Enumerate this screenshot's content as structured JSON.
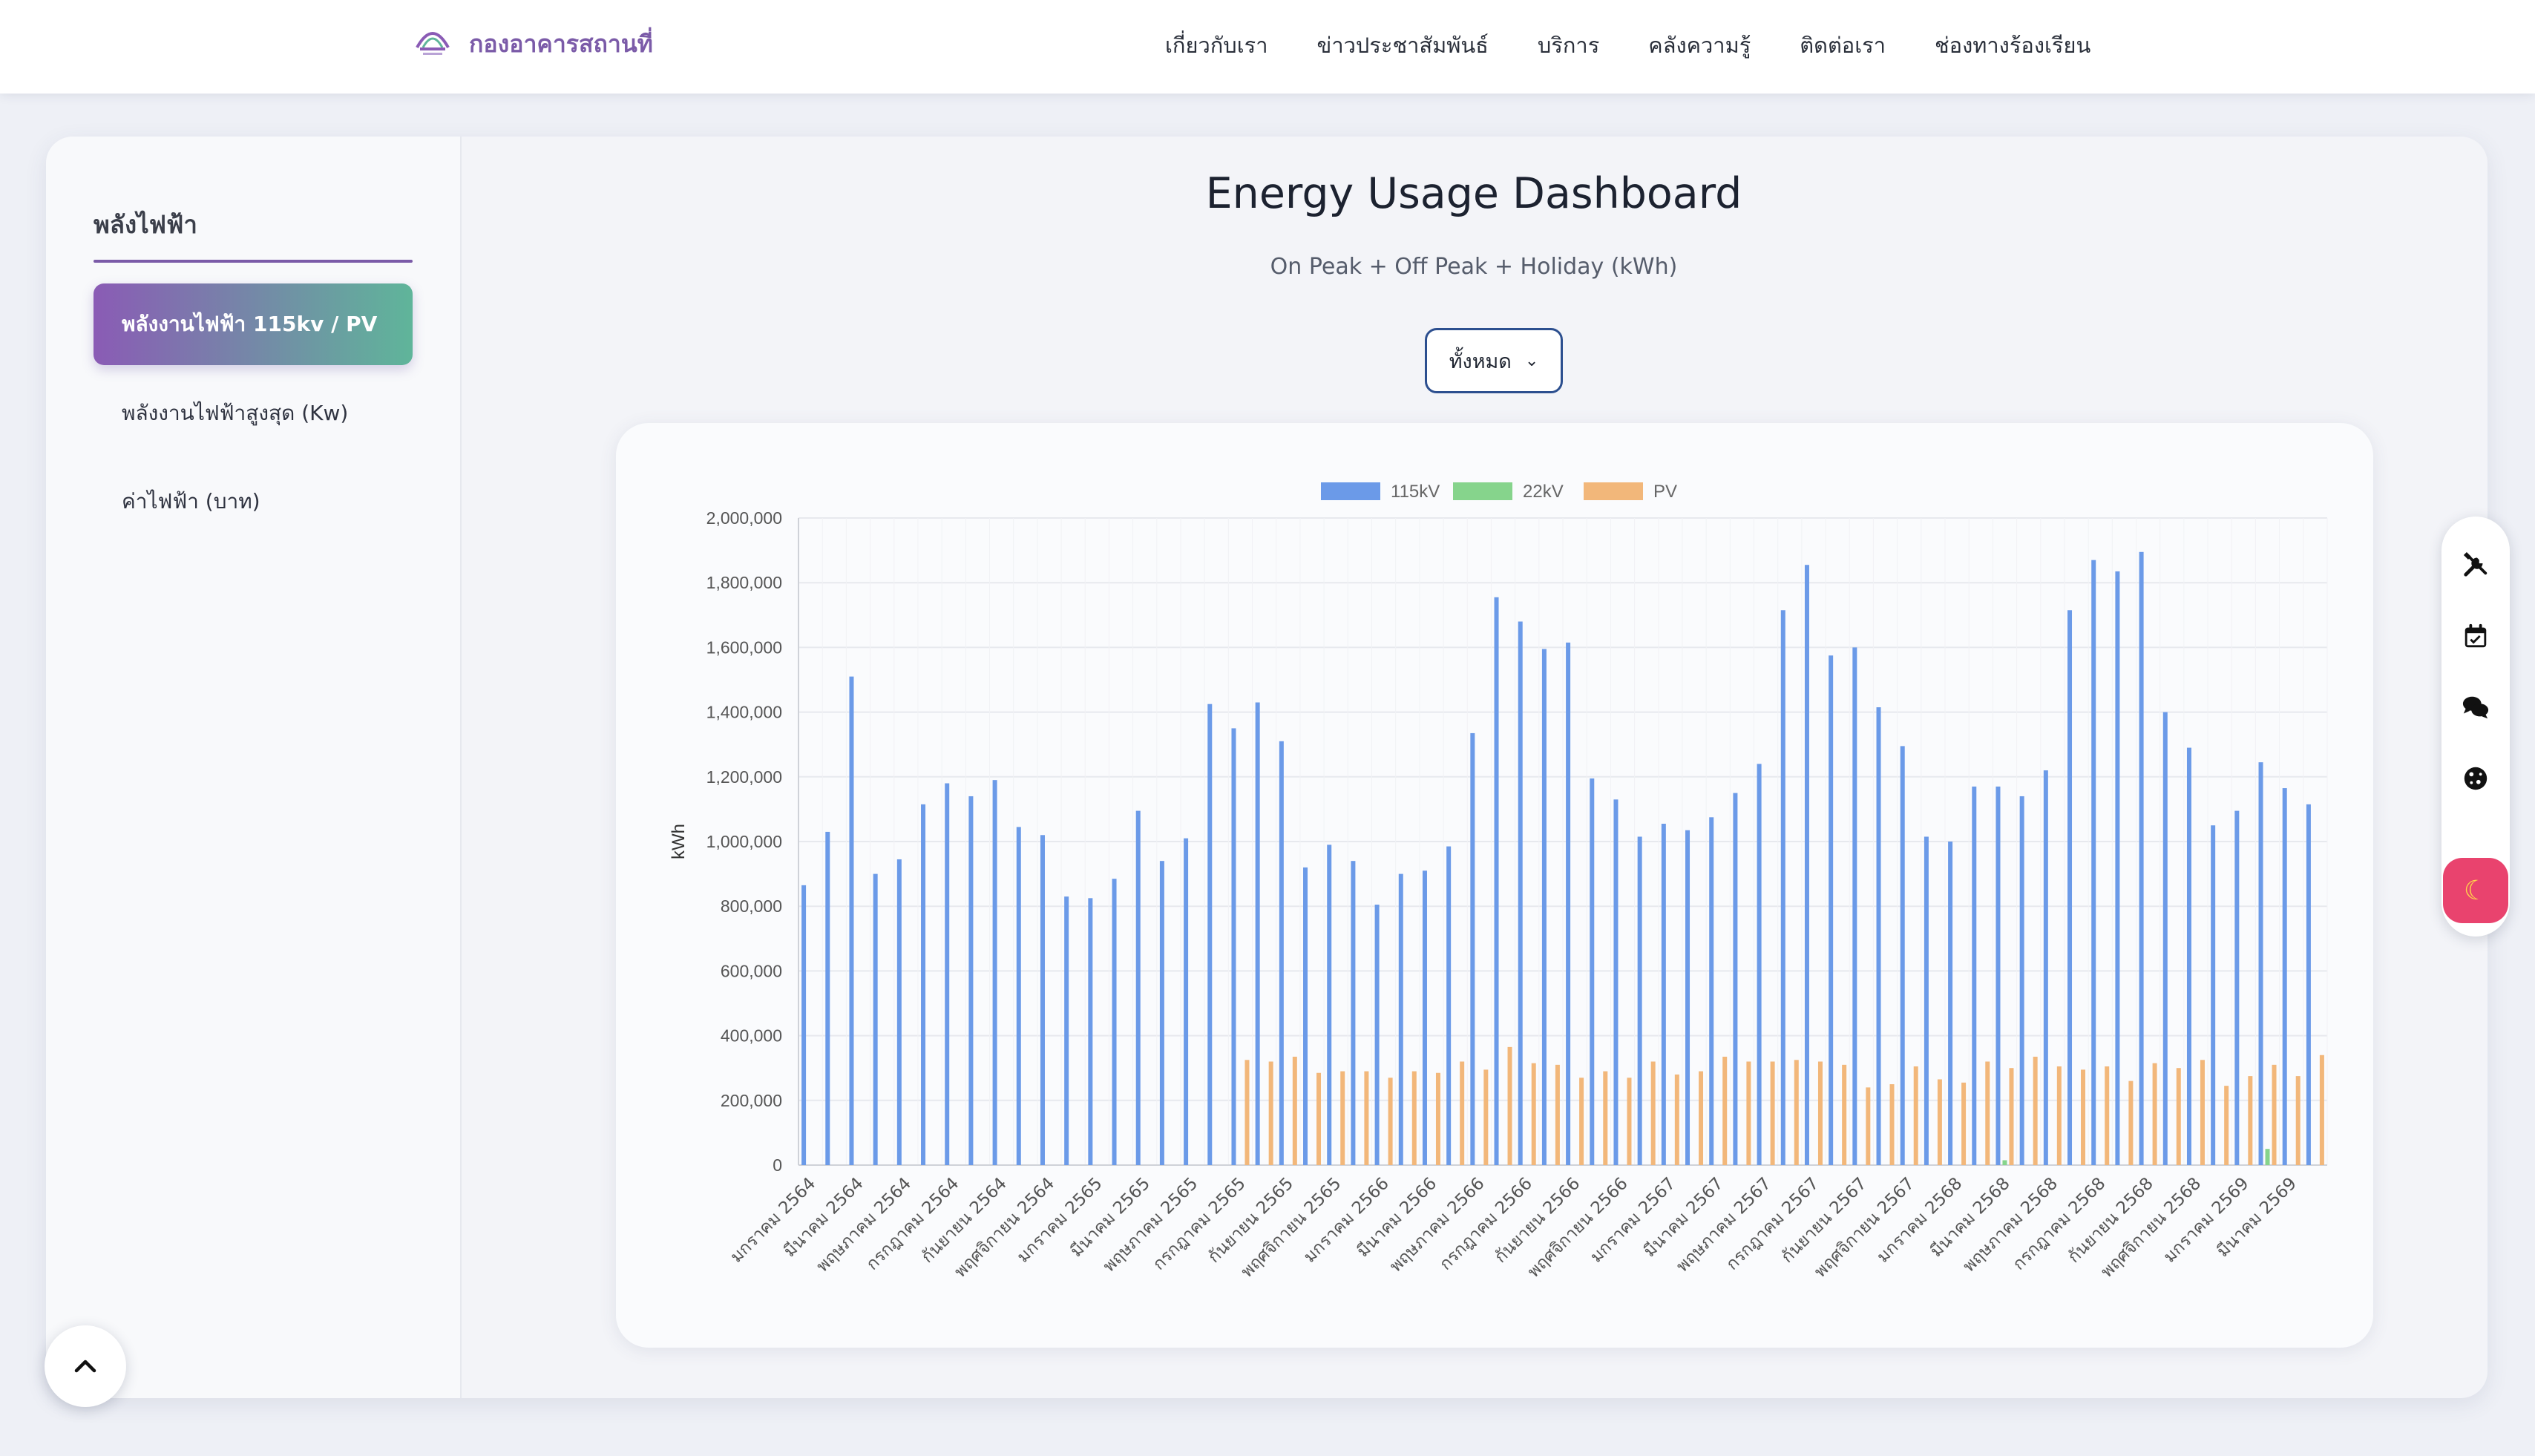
{
  "header": {
    "brand": "กองอาคารสถานที่",
    "nav": [
      "เกี่ยวกับเรา",
      "ข่าวประชาสัมพันธ์",
      "บริการ",
      "คลังความรู้",
      "ติดต่อเรา",
      "ช่องทางร้องเรียน"
    ]
  },
  "sidebar": {
    "title": "พลังไฟฟ้า",
    "items": [
      "พลังงานไฟฟ้า 115kv / PV",
      "พลังงานไฟฟ้าสูงสุด (Kw)",
      "ค่าไฟฟ้า (บาท)"
    ],
    "active_index": 0
  },
  "dashboard": {
    "title": "Energy Usage Dashboard",
    "subtitle": "On Peak + Off Peak + Holiday (kWh)",
    "filter_value": "ทั้งหมด"
  },
  "toolbar": {
    "icons": [
      "tools-icon",
      "calendar-icon",
      "chat-icon",
      "cookie-icon",
      "moon-icon"
    ]
  },
  "colors": {
    "kv115": "#6b9ae8",
    "kv22": "#86d48c",
    "pv": "#f2b77a",
    "accent": "#7b5ba8"
  },
  "chart_data": {
    "type": "bar",
    "title": "",
    "xlabel": "",
    "ylabel": "kWh",
    "ylim": [
      0,
      2000000
    ],
    "y_ticks": [
      "0",
      "200,000",
      "400,000",
      "600,000",
      "800,000",
      "1,000,000",
      "1,200,000",
      "1,400,000",
      "1,600,000",
      "1,800,000",
      "2,000,000"
    ],
    "grid": true,
    "legend": "top-center",
    "x_labels": [
      "มกราคม 2564",
      "มีนาคม 2564",
      "พฤษภาคม 2564",
      "กรกฎาคม 2564",
      "กันยายน 2564",
      "พฤศจิกายน 2564",
      "มกราคม 2565",
      "มีนาคม 2565",
      "พฤษภาคม 2565",
      "กรกฎาคม 2565",
      "กันยายน 2565",
      "พฤศจิกายน 2565",
      "มกราคม 2566",
      "มีนาคม 2566",
      "พฤษภาคม 2566",
      "กรกฎาคม 2566",
      "กันยายน 2566",
      "พฤศจิกายน 2566",
      "มกราคม 2567",
      "มีนาคม 2567",
      "พฤษภาคม 2567",
      "กรกฎาคม 2567",
      "กันยายน 2567",
      "พฤศจิกายน 2567",
      "มกราคม 2568",
      "มีนาคม 2568",
      "พฤษภาคม 2568",
      "กรกฎาคม 2568",
      "กันยายน 2568",
      "พฤศจิกายน 2568",
      "มกราคม 2569",
      "มีนาคม 2569"
    ],
    "series": [
      {
        "name": "115kV",
        "values": [
          865000,
          1030000,
          1510000,
          900000,
          945000,
          1115000,
          1180000,
          1140000,
          1190000,
          1045000,
          1020000,
          830000,
          825000,
          885000,
          1095000,
          940000,
          1010000,
          1425000,
          1350000,
          1430000,
          1310000,
          920000,
          990000,
          940000,
          805000,
          900000,
          910000,
          985000,
          1335000,
          1755000,
          1680000,
          1595000,
          1615000,
          1195000,
          1130000,
          1015000,
          1055000,
          1035000,
          1075000,
          1150000,
          1240000,
          1715000,
          1855000,
          1575000,
          1600000,
          1415000,
          1295000,
          1015000,
          1000000,
          1170000,
          1170000,
          1140000,
          1220000,
          1715000,
          1870000,
          1835000,
          1895000,
          1400000,
          1290000,
          1050000,
          1095000,
          1245000,
          1165000,
          1115000
        ]
      },
      {
        "name": "22kV",
        "values": [
          0,
          0,
          0,
          0,
          0,
          0,
          0,
          0,
          0,
          0,
          0,
          0,
          0,
          0,
          0,
          0,
          0,
          0,
          0,
          0,
          0,
          0,
          0,
          0,
          0,
          0,
          0,
          0,
          0,
          0,
          0,
          0,
          0,
          0,
          0,
          0,
          0,
          0,
          0,
          0,
          0,
          0,
          0,
          0,
          0,
          0,
          0,
          0,
          0,
          0,
          15000,
          0,
          0,
          0,
          0,
          0,
          0,
          0,
          0,
          0,
          0,
          50000,
          0,
          0
        ]
      },
      {
        "name": "PV",
        "values": [
          0,
          0,
          0,
          0,
          0,
          0,
          0,
          0,
          0,
          0,
          0,
          0,
          0,
          0,
          0,
          0,
          0,
          0,
          325000,
          320000,
          335000,
          285000,
          290000,
          290000,
          270000,
          290000,
          285000,
          320000,
          295000,
          365000,
          315000,
          310000,
          270000,
          290000,
          270000,
          320000,
          280000,
          290000,
          335000,
          320000,
          320000,
          325000,
          320000,
          310000,
          240000,
          250000,
          305000,
          265000,
          255000,
          320000,
          300000,
          335000,
          305000,
          295000,
          305000,
          260000,
          315000,
          300000,
          325000,
          245000,
          275000,
          310000,
          275000,
          340000
        ]
      }
    ]
  }
}
